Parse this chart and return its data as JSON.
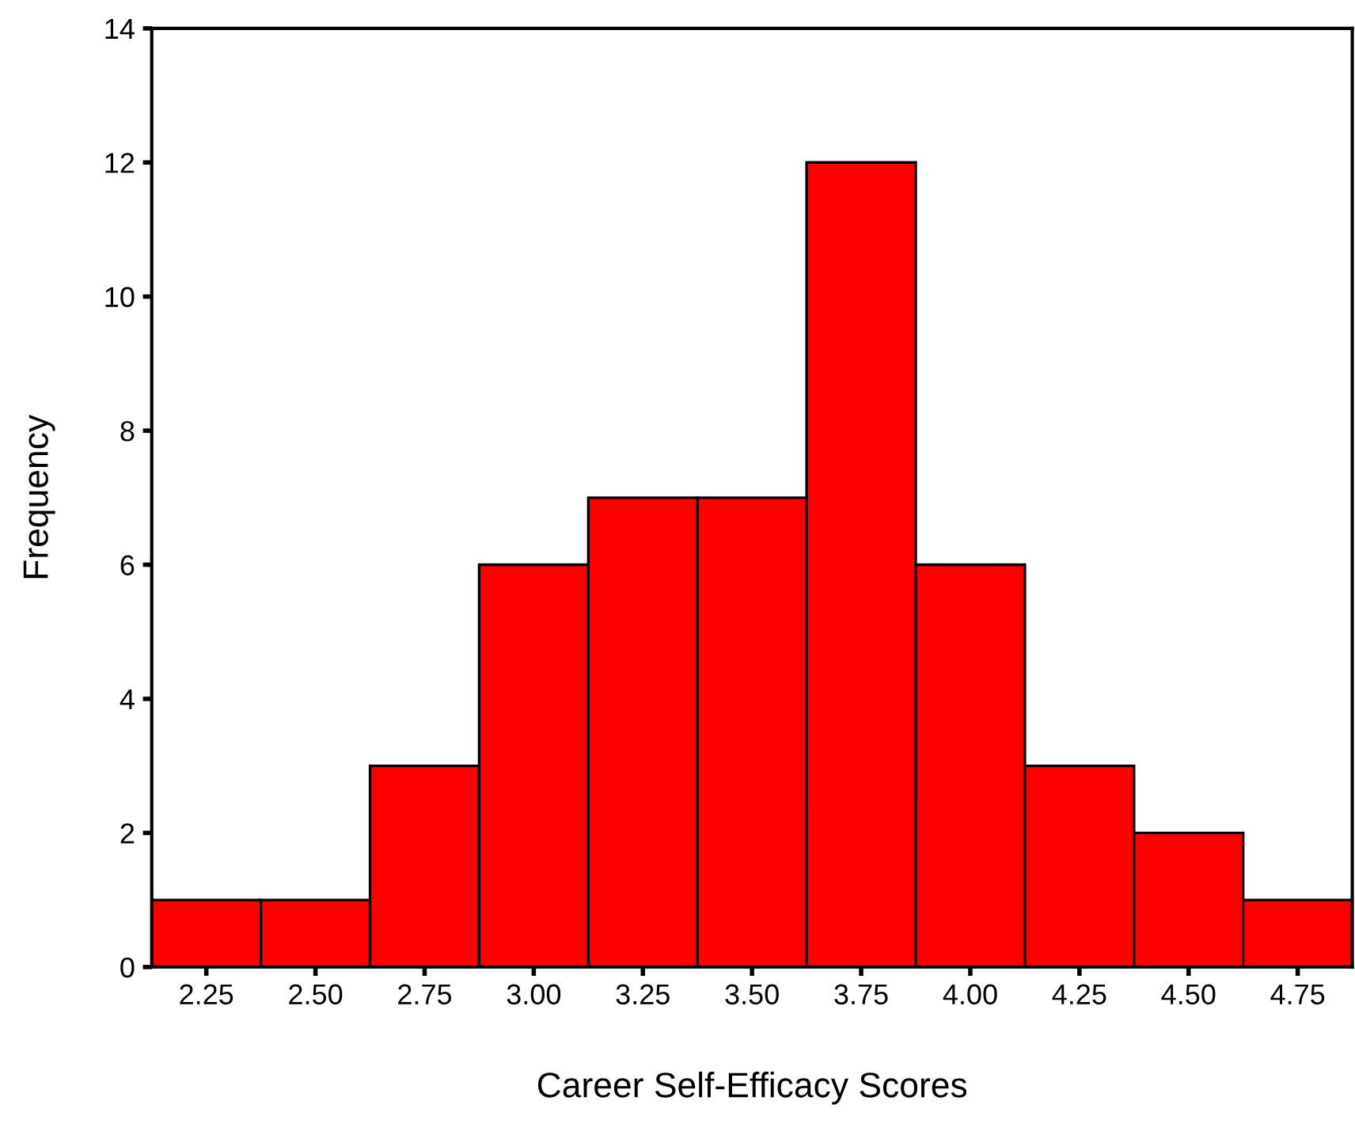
{
  "chart_data": {
    "type": "histogram",
    "xlabel": "Career Self-Efficacy Scores",
    "ylabel": "Frequency",
    "bins": [
      2.125,
      2.375,
      2.625,
      2.875,
      3.125,
      3.375,
      3.625,
      3.875,
      4.125,
      4.375,
      4.625,
      4.875
    ],
    "values": [
      1,
      1,
      3,
      6,
      7,
      7,
      12,
      6,
      3,
      2,
      1
    ],
    "color": "#ff0000",
    "xlim": [
      2.125,
      4.875
    ],
    "xticks": [
      {
        "value": 2.25,
        "label": "2.25"
      },
      {
        "value": 2.5,
        "label": "2.50"
      },
      {
        "value": 2.75,
        "label": "2.75"
      },
      {
        "value": 3.0,
        "label": "3.00"
      },
      {
        "value": 3.25,
        "label": "3.25"
      },
      {
        "value": 3.5,
        "label": "3.50"
      },
      {
        "value": 3.75,
        "label": "3.75"
      },
      {
        "value": 4.0,
        "label": "4.00"
      },
      {
        "value": 4.25,
        "label": "4.25"
      },
      {
        "value": 4.5,
        "label": "4.50"
      },
      {
        "value": 4.75,
        "label": "4.75"
      }
    ],
    "ylim": [
      0,
      14
    ],
    "yticks": [
      0,
      2,
      4,
      6,
      8,
      10,
      12,
      14
    ],
    "grid": false
  }
}
